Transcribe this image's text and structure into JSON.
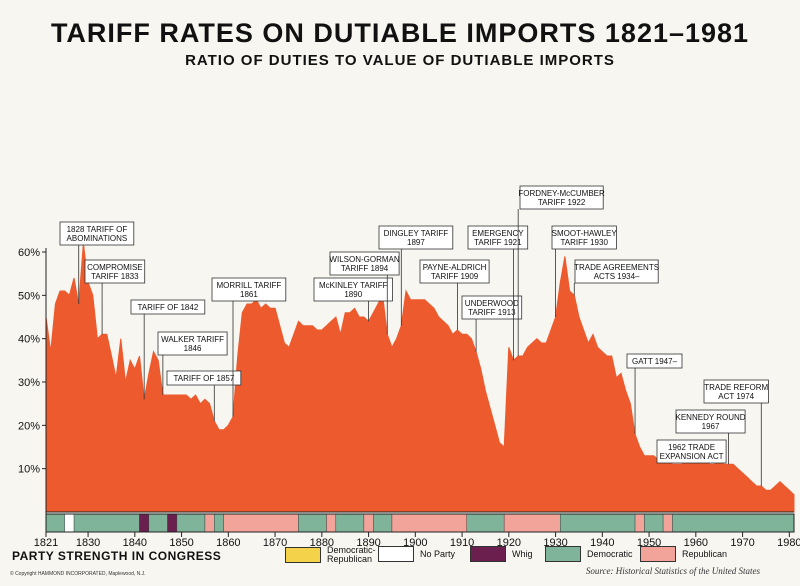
{
  "header": {
    "title": "TARIFF RATES ON DUTIABLE IMPORTS 1821–1981",
    "subtitle": "RATIO OF DUTIES TO VALUE OF DUTIABLE IMPORTS"
  },
  "colors": {
    "area": "#ec5a2e",
    "democratic_republican": "#f4d24a",
    "no_party": "#ffffff",
    "whig": "#6a1f4e",
    "democratic": "#7fb39a",
    "republican": "#f2a39a"
  },
  "legend": {
    "title": "PARTY STRENGTH IN CONGRESS",
    "items": [
      {
        "key": "democratic_republican",
        "label": "Democratic-\nRepublican"
      },
      {
        "key": "no_party",
        "label": "No Party"
      },
      {
        "key": "whig",
        "label": "Whig"
      },
      {
        "key": "democratic",
        "label": "Democratic"
      },
      {
        "key": "republican",
        "label": "Republican"
      }
    ]
  },
  "copyright": "© Copyright HAMMOND INCORPORATED, Maplewood, N.J.",
  "source": "Source: Historical Statistics of the United States",
  "chart_data": {
    "type": "area",
    "title": "TARIFF RATES ON DUTIABLE IMPORTS 1821–1981",
    "subtitle": "RATIO OF DUTIES TO VALUE OF DUTIABLE IMPORTS",
    "xlabel": "",
    "ylabel": "",
    "xlim": [
      1821,
      1981
    ],
    "ylim": [
      0,
      65
    ],
    "x_ticks": [
      1821,
      1830,
      1840,
      1850,
      1860,
      1870,
      1880,
      1890,
      1900,
      1910,
      1920,
      1930,
      1940,
      1950,
      1960,
      1970,
      1980
    ],
    "x_tick_labels": [
      "1821",
      "1830",
      "1840",
      "1850",
      "1860",
      "1870",
      "1880",
      "1890",
      "1900",
      "1910",
      "1920",
      "1930",
      "1940",
      "1950",
      "1960",
      "1970",
      "1980"
    ],
    "y_ticks": [
      10,
      20,
      30,
      40,
      50,
      60
    ],
    "y_tick_labels": [
      "10%",
      "20%",
      "30%",
      "40%",
      "50%",
      "60%"
    ],
    "grid": false,
    "series": [
      {
        "x": [
          1821,
          1822,
          1823,
          1824,
          1825,
          1826,
          1827,
          1828,
          1829,
          1830,
          1831,
          1832,
          1833,
          1834,
          1835,
          1836,
          1837,
          1838,
          1839,
          1840,
          1841,
          1842,
          1843,
          1844,
          1845,
          1846,
          1847,
          1848,
          1849,
          1850,
          1851,
          1852,
          1853,
          1854,
          1855,
          1856,
          1857,
          1858,
          1859,
          1860,
          1861,
          1862,
          1863,
          1864,
          1865,
          1866,
          1867,
          1868,
          1869,
          1870,
          1871,
          1872,
          1873,
          1874,
          1875,
          1876,
          1877,
          1878,
          1879,
          1880,
          1881,
          1882,
          1883,
          1884,
          1885,
          1886,
          1887,
          1888,
          1889,
          1890,
          1891,
          1892,
          1893,
          1894,
          1895,
          1896,
          1897,
          1898,
          1899,
          1900,
          1901,
          1902,
          1903,
          1904,
          1905,
          1906,
          1907,
          1908,
          1909,
          1910,
          1911,
          1912,
          1913,
          1914,
          1915,
          1916,
          1917,
          1918,
          1919,
          1920,
          1921,
          1922,
          1923,
          1924,
          1925,
          1926,
          1927,
          1928,
          1929,
          1930,
          1931,
          1932,
          1933,
          1934,
          1935,
          1936,
          1937,
          1938,
          1939,
          1940,
          1941,
          1942,
          1943,
          1944,
          1945,
          1946,
          1947,
          1948,
          1949,
          1950,
          1951,
          1952,
          1953,
          1954,
          1955,
          1956,
          1957,
          1958,
          1959,
          1960,
          1961,
          1962,
          1963,
          1964,
          1965,
          1966,
          1967,
          1968,
          1969,
          1970,
          1971,
          1972,
          1973,
          1974,
          1975,
          1976,
          1977,
          1978,
          1979,
          1980,
          1981
        ],
        "values": [
          45,
          37,
          48,
          51,
          51,
          50,
          54,
          48,
          62,
          53,
          50,
          40,
          41,
          41,
          36,
          31,
          40,
          30,
          35,
          33,
          36,
          26,
          32,
          37,
          35,
          27,
          27,
          27,
          27,
          27,
          27,
          26,
          27,
          25,
          26,
          25,
          21,
          19,
          19,
          20,
          22,
          36,
          46,
          48,
          48,
          49,
          47,
          48,
          47,
          47,
          43,
          39,
          38,
          41,
          44,
          43,
          43,
          43,
          42,
          42,
          43,
          44,
          45,
          41,
          46,
          46,
          47,
          45,
          45,
          44,
          46,
          48,
          50,
          41,
          38,
          40,
          43,
          51,
          49,
          49,
          49,
          49,
          48,
          47,
          45,
          44,
          43,
          41,
          42,
          41,
          41,
          40,
          37,
          33,
          28,
          24,
          20,
          16,
          15,
          38,
          35,
          36,
          36,
          38,
          39,
          40,
          39,
          39,
          42,
          45,
          53,
          59,
          51,
          50,
          45,
          42,
          39,
          41,
          38,
          37,
          36,
          36,
          31,
          32,
          28,
          25,
          18,
          15,
          13,
          13,
          13,
          12,
          12,
          12,
          11,
          11,
          11,
          12,
          12,
          12,
          12,
          12,
          11,
          11,
          12,
          11,
          11,
          11,
          10,
          9,
          8,
          7,
          6,
          6,
          5,
          5,
          6,
          7,
          6,
          5,
          4
        ],
        "name": ""
      }
    ],
    "annotations": [
      {
        "text": "1828 TARIFF OF\nABOMINATIONS",
        "year": 1828
      },
      {
        "text": "COMPROMISE\nTARIFF 1833",
        "year": 1833
      },
      {
        "text": "TARIFF OF 1842",
        "year": 1842
      },
      {
        "text": "WALKER TARIFF\n1846",
        "year": 1846
      },
      {
        "text": "TARIFF OF 1857",
        "year": 1857
      },
      {
        "text": "MORRILL TARIFF\n1861",
        "year": 1861
      },
      {
        "text": "McKINLEY TARIFF\n1890",
        "year": 1890
      },
      {
        "text": "WILSON-GORMAN\nTARIFF 1894",
        "year": 1894
      },
      {
        "text": "DINGLEY TARIFF\n1897",
        "year": 1897
      },
      {
        "text": "PAYNE-ALDRICH\nTARIFF 1909",
        "year": 1909
      },
      {
        "text": "UNDERWOOD\nTARIFF 1913",
        "year": 1913
      },
      {
        "text": "EMERGENCY\nTARIFF 1921",
        "year": 1921
      },
      {
        "text": "FORDNEY-McCUMBER\nTARIFF 1922",
        "year": 1922
      },
      {
        "text": "SMOOT-HAWLEY\nTARIFF 1930",
        "year": 1930
      },
      {
        "text": "TRADE AGREEMENTS\nACTS 1934–",
        "year": 1934
      },
      {
        "text": "GATT 1947–",
        "year": 1947
      },
      {
        "text": "1962 TRADE\nEXPANSION ACT",
        "year": 1962
      },
      {
        "text": "KENNEDY ROUND\n1967",
        "year": 1967
      },
      {
        "text": "TRADE REFORM\nACT 1974",
        "year": 1974
      }
    ],
    "party_strength": [
      {
        "start": 1821,
        "end": 1825,
        "party": "democratic"
      },
      {
        "start": 1825,
        "end": 1827,
        "party": "no_party"
      },
      {
        "start": 1827,
        "end": 1841,
        "party": "democratic"
      },
      {
        "start": 1841,
        "end": 1843,
        "party": "whig"
      },
      {
        "start": 1843,
        "end": 1847,
        "party": "democratic"
      },
      {
        "start": 1847,
        "end": 1849,
        "party": "whig"
      },
      {
        "start": 1849,
        "end": 1855,
        "party": "democratic"
      },
      {
        "start": 1855,
        "end": 1857,
        "party": "republican"
      },
      {
        "start": 1857,
        "end": 1859,
        "party": "democratic"
      },
      {
        "start": 1859,
        "end": 1875,
        "party": "republican"
      },
      {
        "start": 1875,
        "end": 1881,
        "party": "democratic"
      },
      {
        "start": 1881,
        "end": 1883,
        "party": "republican"
      },
      {
        "start": 1883,
        "end": 1889,
        "party": "democratic"
      },
      {
        "start": 1889,
        "end": 1891,
        "party": "republican"
      },
      {
        "start": 1891,
        "end": 1895,
        "party": "democratic"
      },
      {
        "start": 1895,
        "end": 1911,
        "party": "republican"
      },
      {
        "start": 1911,
        "end": 1919,
        "party": "democratic"
      },
      {
        "start": 1919,
        "end": 1931,
        "party": "republican"
      },
      {
        "start": 1931,
        "end": 1947,
        "party": "democratic"
      },
      {
        "start": 1947,
        "end": 1949,
        "party": "republican"
      },
      {
        "start": 1949,
        "end": 1953,
        "party": "democratic"
      },
      {
        "start": 1953,
        "end": 1955,
        "party": "republican"
      },
      {
        "start": 1955,
        "end": 1981,
        "party": "democratic"
      }
    ]
  }
}
